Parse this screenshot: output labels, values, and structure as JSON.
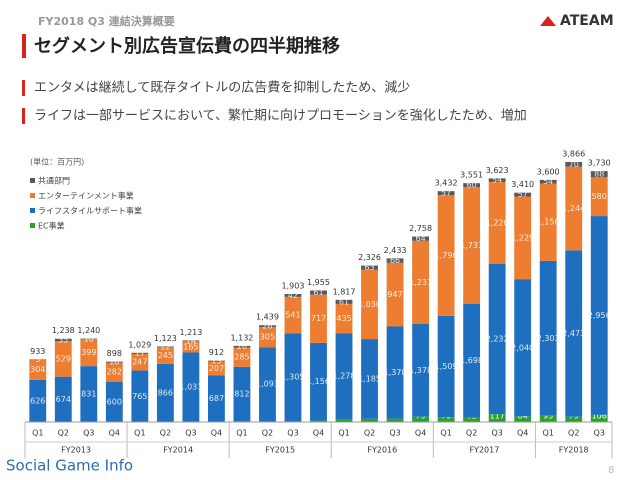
{
  "header": {
    "section": "FY2018 Q3 連結決算概要",
    "logo": "ATEAM",
    "page": "8",
    "watermark": "Social Game Info"
  },
  "chart_data": {
    "type": "stacked_bar",
    "title": "セグメント別広告宣伝費の四半期推移",
    "bullets": [
      "エンタメは継続して既存タイトルの広告費を抑制したため、減少",
      "ライフは一部サービスにおいて、繁忙期に向けプロモーションを強化したため、増加"
    ],
    "unit_label": "(単位：百万円)",
    "categories": [
      "Q1",
      "Q2",
      "Q3",
      "Q4",
      "Q1",
      "Q2",
      "Q3",
      "Q4",
      "Q1",
      "Q2",
      "Q3",
      "Q4",
      "Q1",
      "Q2",
      "Q3",
      "Q4",
      "Q1",
      "Q2",
      "Q3",
      "Q4",
      "Q1",
      "Q2",
      "Q3"
    ],
    "groups": [
      "FY2013",
      "FY2014",
      "FY2015",
      "FY2016",
      "FY2017",
      "FY2018"
    ],
    "series": [
      {
        "name": "EC事業",
        "color": "#2ca02c",
        "values": [
          null,
          null,
          null,
          null,
          null,
          null,
          3,
          5,
          9,
          15,
          15,
          21,
          43,
          48,
          50,
          79,
          70,
          62,
          117,
          84,
          93,
          79,
          106
        ],
        "value_labels": [
          null,
          null,
          null,
          null,
          null,
          null,
          "3",
          "5",
          "9",
          "15",
          "15",
          "21",
          "43",
          "48",
          "50",
          "79",
          "70",
          "62",
          "117",
          "84",
          "93",
          "79",
          "106"
        ]
      },
      {
        "name": "ライフスタイルサポート事業",
        "color": "#1f6fc0",
        "values": [
          626,
          674,
          831,
          600,
          765,
          866,
          1031,
          687,
          812,
          1093,
          1305,
          1156,
          1278,
          1185,
          1370,
          1378,
          1509,
          1698,
          2232,
          2040,
          2303,
          2473,
          2956
        ],
        "value_labels": [
          "626",
          "674",
          "831",
          "600",
          "765",
          "866",
          "1,031",
          "687",
          "812",
          "1,093",
          "1,305",
          "1,156",
          "1,278",
          "1,185",
          "1,370",
          "1,378",
          "1,509",
          "1,698",
          "2,232",
          "2,040",
          "2,303",
          "2,473",
          "2,956"
        ]
      },
      {
        "name": "エンターテインメント事業",
        "color": "#ed7d31",
        "values": [
          304,
          529,
          399,
          282,
          247,
          245,
          165,
          207,
          285,
          305,
          541,
          717,
          435,
          1030,
          947,
          1237,
          1796,
          1731,
          1220,
          1229,
          1150,
          1244,
          580
        ],
        "value_labels": [
          "304",
          "529",
          "399",
          "282",
          "247",
          "245",
          "165",
          "207",
          "285",
          "305",
          "541",
          "717",
          "435",
          "1,030",
          "947",
          "1,237",
          "1,796",
          "1,731",
          "1,220",
          "1,229",
          "1,150",
          "1,244",
          "580"
        ]
      },
      {
        "name": "共通部門",
        "color": "#595959",
        "values": [
          3,
          35,
          10,
          16,
          17,
          12,
          14,
          13,
          26,
          26,
          42,
          61,
          61,
          63,
          66,
          64,
          57,
          60,
          54,
          57,
          54,
          70,
          88
        ],
        "value_labels": [
          "3",
          "35",
          "10",
          "16",
          "17",
          "12",
          "14",
          "13",
          "26",
          "26",
          "42",
          "61",
          "61",
          "63",
          "66",
          "64",
          "57",
          "60",
          "54",
          "57",
          "54",
          "70",
          "88"
        ]
      }
    ],
    "totals": [
      933,
      1238,
      1240,
      898,
      1029,
      1123,
      1213,
      912,
      1132,
      1439,
      1903,
      1955,
      1817,
      2326,
      2433,
      2758,
      3432,
      3551,
      3623,
      3410,
      3600,
      3866,
      3730
    ],
    "total_labels": [
      "933",
      "1,238",
      "1,240",
      "898",
      "1,029",
      "1,123",
      "1,213",
      "912",
      "1,132",
      "1,439",
      "1,903",
      "1,955",
      "1,817",
      "2,326",
      "2,433",
      "2,758",
      "3,432",
      "3,551",
      "3,623",
      "3,410",
      "3,600",
      "3,866",
      "3,730"
    ]
  }
}
